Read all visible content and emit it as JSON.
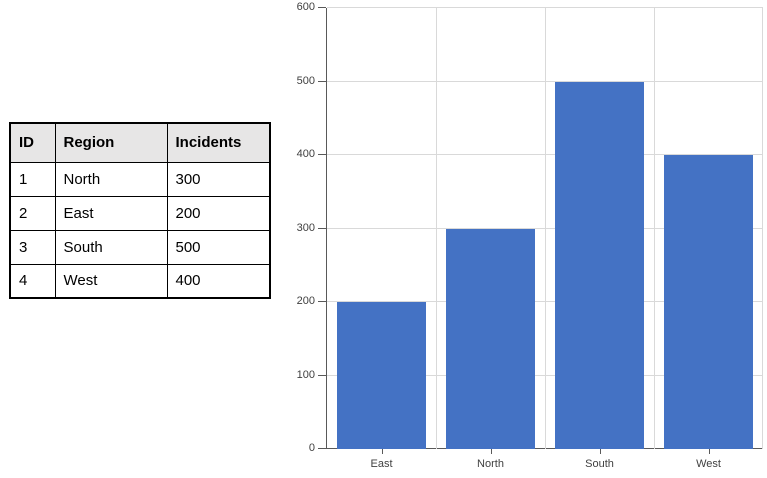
{
  "table": {
    "headers": [
      "ID",
      "Region",
      "Incidents"
    ],
    "rows": [
      [
        1,
        "North",
        300
      ],
      [
        2,
        "East",
        200
      ],
      [
        3,
        "South",
        500
      ],
      [
        4,
        "West",
        400
      ]
    ]
  },
  "chart_data": {
    "type": "bar",
    "categories": [
      "East",
      "North",
      "South",
      "West"
    ],
    "values": [
      200,
      300,
      500,
      400
    ],
    "title": "",
    "xlabel": "",
    "ylabel": "",
    "ylim": [
      0,
      600
    ],
    "yticks": [
      0,
      100,
      200,
      300,
      400,
      500,
      600
    ],
    "grid": true,
    "legend": "none",
    "bar_color": "#4472C4",
    "gridline_color": "#D9D9D9",
    "axis_color": "#595959",
    "tick_label_color": "#404040"
  },
  "colors": {
    "table_header_bg": "#E7E6E6",
    "table_border": "#000000",
    "background": "#FFFFFF"
  }
}
